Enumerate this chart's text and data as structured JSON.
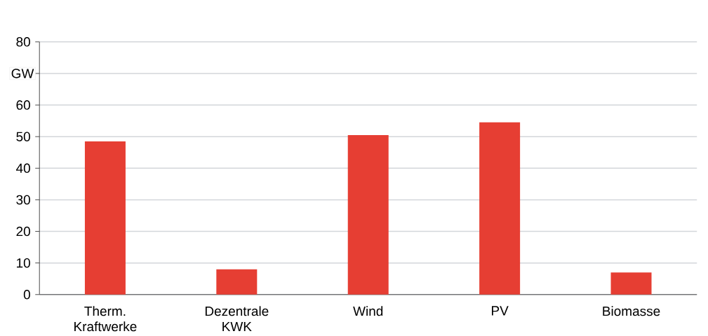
{
  "chart_data": {
    "type": "bar",
    "ylabel": "GW",
    "categories": [
      "Therm. Kraftwerke",
      "Dezentrale KWK",
      "Wind",
      "PV",
      "Biomasse"
    ],
    "values": [
      48.5,
      8,
      50.5,
      54.5,
      7
    ],
    "color": "#e63e33",
    "ylim": [
      0,
      80
    ],
    "yticks": [
      0,
      10,
      20,
      30,
      40,
      50,
      60,
      {
        "value": 70,
        "label": null
      },
      80
    ],
    "grid": "y"
  }
}
